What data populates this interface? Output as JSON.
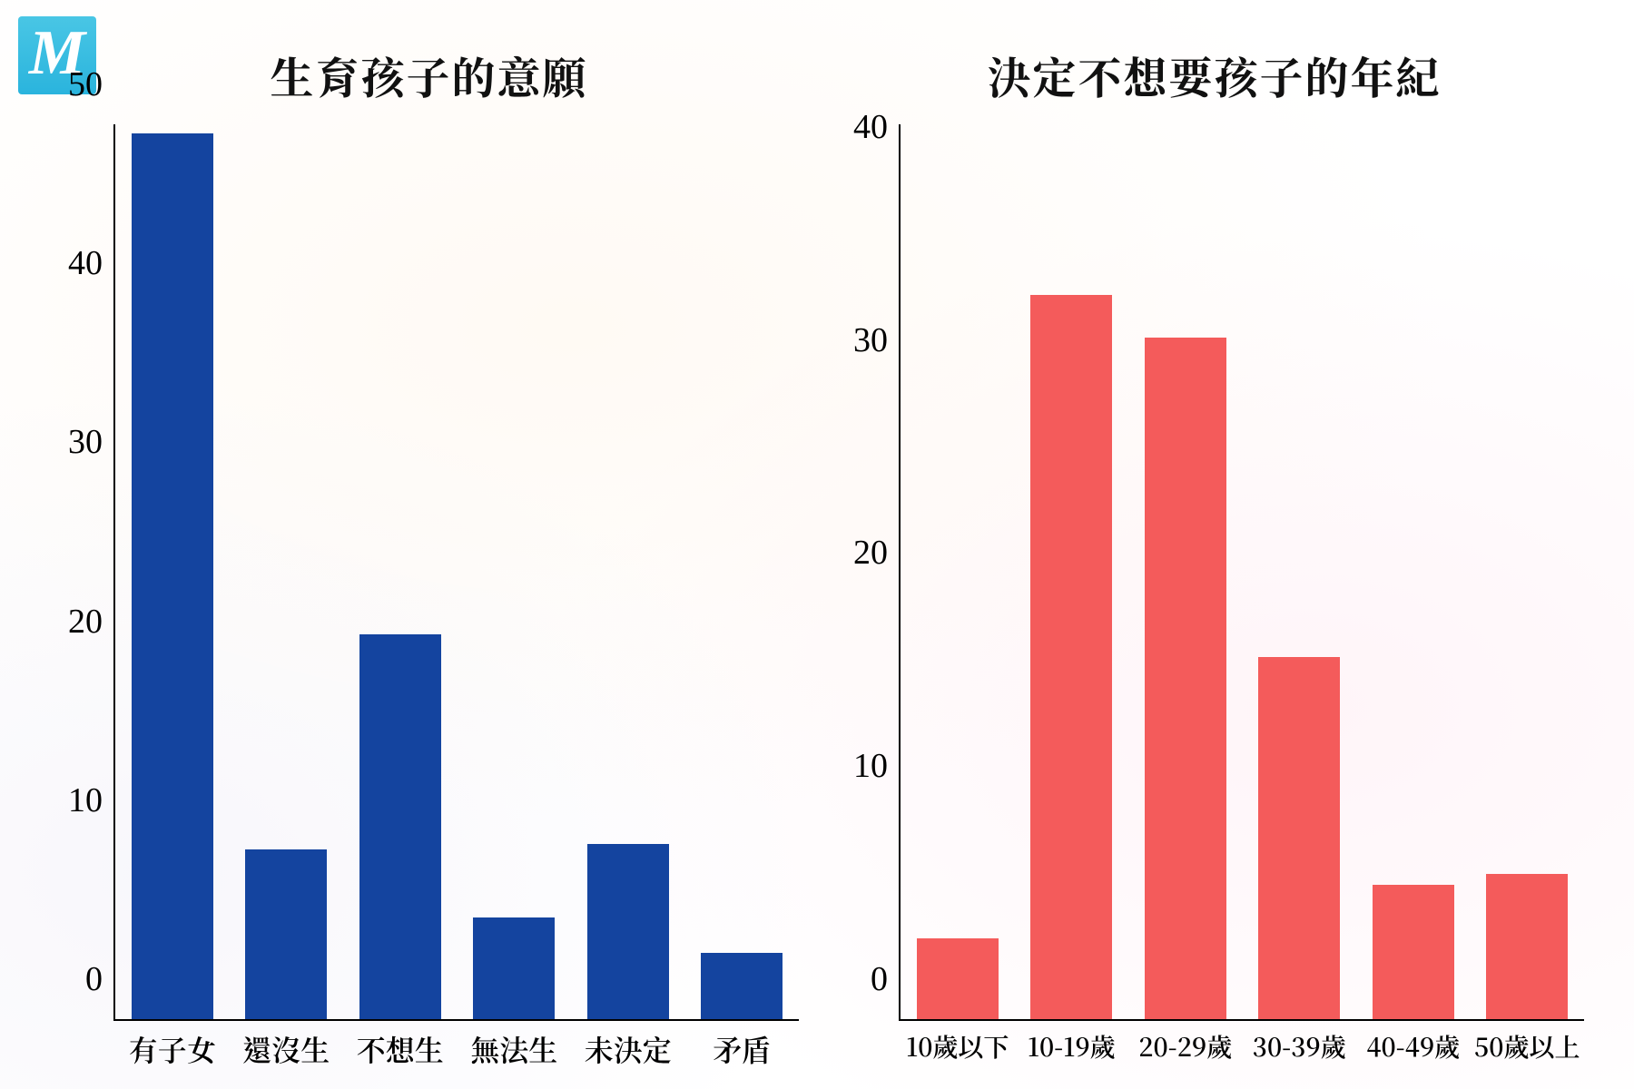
{
  "logo": {
    "text": "M",
    "bg_gradient": [
      "#49c6e5",
      "#2ab4dd"
    ],
    "text_color": "#ffffff"
  },
  "background_color": "#ffffff",
  "axis_color": "#000000",
  "left_chart": {
    "type": "bar",
    "title": "生育孩子的意願",
    "title_fontsize": 48,
    "title_color": "#111111",
    "categories": [
      "有子女",
      "還沒生",
      "不想生",
      "無法生",
      "未決定",
      "矛盾"
    ],
    "values": [
      49.5,
      9.5,
      21.5,
      5.7,
      9.8,
      3.7
    ],
    "bar_color": "#14449f",
    "ylim": [
      0,
      50
    ],
    "ytick_step": 10,
    "yticks": [
      0,
      10,
      20,
      30,
      40,
      50
    ],
    "tick_fontsize": 38,
    "xlabel_fontsize": 32,
    "bar_width": 0.72
  },
  "right_chart": {
    "type": "bar",
    "title": "決定不想要孩子的年紀",
    "title_fontsize": 48,
    "title_color": "#111111",
    "categories": [
      "10歲以下",
      "10-19歲",
      "20-29歲",
      "30-39歲",
      "40-49歲",
      "50歲以上"
    ],
    "values": [
      3.8,
      34,
      32,
      17,
      6.3,
      6.8
    ],
    "bar_color": "#f45b5b",
    "ylim": [
      0,
      42
    ],
    "ytick_step": 10,
    "yticks": [
      0,
      10,
      20,
      30,
      40
    ],
    "tick_fontsize": 38,
    "xlabel_fontsize": 28,
    "bar_width": 0.72
  }
}
